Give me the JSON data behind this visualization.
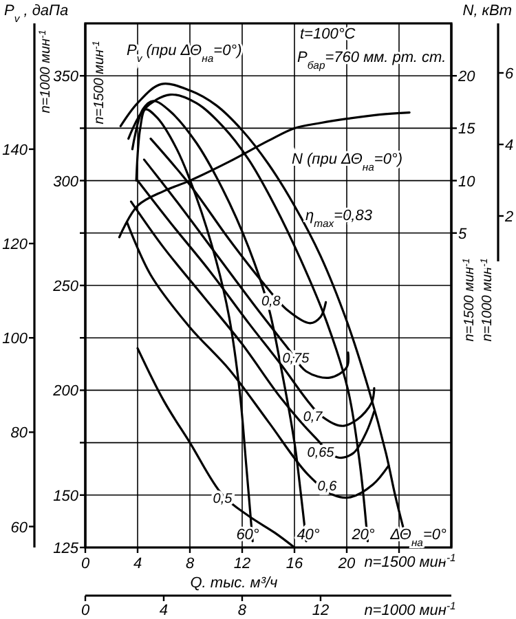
{
  "chart_data": {
    "type": "line",
    "xlabel": "Q. тыс. м³/ч",
    "ylabel": "n=1500 мин$^{-1}$",
    "y2label": "n=1500 мин$^{-1}$",
    "y3label": "n=1000 мин$^{-1}$",
    "x2label": "n=1000 мин$^{-1}$",
    "xlim": [
      0,
      28
    ],
    "xticks": [
      0,
      4,
      8,
      12,
      16,
      20,
      {
        "value": 24,
        "label": null
      }
    ],
    "ylim": [
      125,
      375
    ],
    "yticks": [
      125,
      150,
      {
        "value": 175,
        "label": null
      },
      200,
      {
        "value": 225,
        "label": null
      },
      250,
      {
        "value": 275,
        "label": null
      },
      300,
      {
        "value": 325,
        "label": null
      },
      350
    ],
    "y2lim": [
      -25,
      25
    ],
    "y2ticks": [
      5,
      10,
      15,
      20
    ],
    "y3lim": [
      55.56,
      166.67
    ],
    "y3ticks": [
      60,
      80,
      100,
      120,
      140
    ],
    "x2lim": [
      0,
      18.67
    ],
    "x2ticks": [
      0,
      4,
      8,
      12
    ],
    "grid": true,
    "series": [
      {
        "color": "#000000",
        "x": [
          2.7,
          4,
          5.8,
          8,
          10,
          12,
          14,
          16,
          18,
          20,
          21.7,
          23,
          23.7,
          24.3
        ],
        "values": [
          326,
          337,
          346,
          343,
          336,
          324,
          308,
          288,
          264,
          233,
          200,
          170,
          150,
          135
        ]
      },
      {
        "color": "#000000",
        "x": [
          3.3,
          4.5,
          6.5,
          8.5,
          10.5,
          12.5,
          14.5,
          16.5,
          18.5,
          20.1,
          21,
          21.6
        ],
        "values": [
          320,
          334,
          341,
          337,
          326,
          310,
          288,
          262,
          232,
          200,
          165,
          128
        ]
      },
      {
        "color": "#000000",
        "x": [
          3.6,
          4.4,
          5.2,
          6.5,
          8.5,
          10.5,
          12.5,
          14,
          15,
          16,
          16.5,
          16.9
        ],
        "values": [
          315,
          334,
          338,
          333,
          318,
          296,
          268,
          240,
          210,
          175,
          150,
          128
        ]
      },
      {
        "color": "#000000",
        "x": [
          3.9,
          4.2,
          4.6,
          5.5,
          7,
          8.5,
          10,
          11,
          11.8,
          12.3,
          12.8
        ],
        "values": [
          300,
          325,
          334,
          330,
          315,
          292,
          262,
          235,
          200,
          165,
          128
        ]
      },
      {
        "color": "#000000",
        "x": [
          5,
          8,
          11,
          13.5,
          15.5,
          17.2,
          18,
          18.4
        ],
        "values": [
          320,
          298,
          272,
          252,
          238,
          232,
          235,
          242
        ]
      },
      {
        "color": "#000000",
        "x": [
          4.5,
          7,
          10,
          13,
          15.5,
          16.9,
          18.7,
          20,
          20.1
        ],
        "values": [
          310,
          290,
          265,
          240,
          220,
          209,
          206,
          211,
          218
        ]
      },
      {
        "color": "#000000",
        "x": [
          4,
          6.5,
          9.5,
          12.5,
          15,
          17,
          18,
          19.6,
          20.8,
          21.9,
          22.1
        ],
        "values": [
          300,
          280,
          257,
          232,
          212,
          195,
          188,
          183,
          186,
          194,
          201
        ]
      },
      {
        "color": "#000000",
        "x": [
          3.5,
          6,
          9,
          12,
          15,
          17.5,
          19.3,
          20.5,
          21.5,
          22.1
        ],
        "values": [
          290,
          268,
          245,
          222,
          196,
          178,
          168,
          170,
          180,
          190
        ]
      },
      {
        "color": "#000000",
        "x": [
          3.2,
          5,
          8,
          11,
          14,
          17,
          19,
          20.3,
          22,
          23.2
        ],
        "values": [
          280,
          255,
          230,
          210,
          185,
          160,
          150,
          149,
          155,
          164
        ]
      },
      {
        "color": "#000000",
        "x": [
          4,
          6,
          8,
          10.5,
          12.5,
          14.5,
          16
        ],
        "values": [
          220,
          195,
          175,
          150,
          140,
          132,
          125
        ]
      },
      {
        "color": "#000000",
        "axis": "y2",
        "x": [
          2.6,
          4,
          6,
          8,
          11,
          14,
          16,
          18,
          20,
          22.5,
          24.8
        ],
        "values": [
          4.6,
          7.6,
          9,
          10,
          11.8,
          13.8,
          15,
          15.5,
          15.9,
          16.3,
          16.5
        ]
      }
    ],
    "annotations": [
      "P$_{v}$ , даПа",
      "N, кВт",
      "t=100°C",
      "P$_{бар}$=760 мм. рт. ст.",
      "P$_{v}$ (при ΔΘ$_{на}$=0°)",
      "N (при ΔΘ$_{на}$=0°)",
      "η$_{max}$=0,83",
      "n=1500 мин$^{-1}$",
      "n=1000 мин$^{-1}$",
      "6",
      "4",
      "2",
      "60°",
      "40°",
      "20°",
      "ΔΘ$_{на}$=0°",
      {
        "text": "0,8",
        "x": 14.2,
        "y": 243
      },
      {
        "text": "0,75",
        "x": 16.1,
        "y": 216
      },
      {
        "text": "0,7",
        "x": 17.4,
        "y": 188
      },
      {
        "text": "0,65",
        "x": 18,
        "y": 171
      },
      {
        "text": "0,6",
        "x": 18.5,
        "y": 155
      },
      {
        "text": "0,5",
        "x": 10.5,
        "y": 149
      }
    ]
  }
}
